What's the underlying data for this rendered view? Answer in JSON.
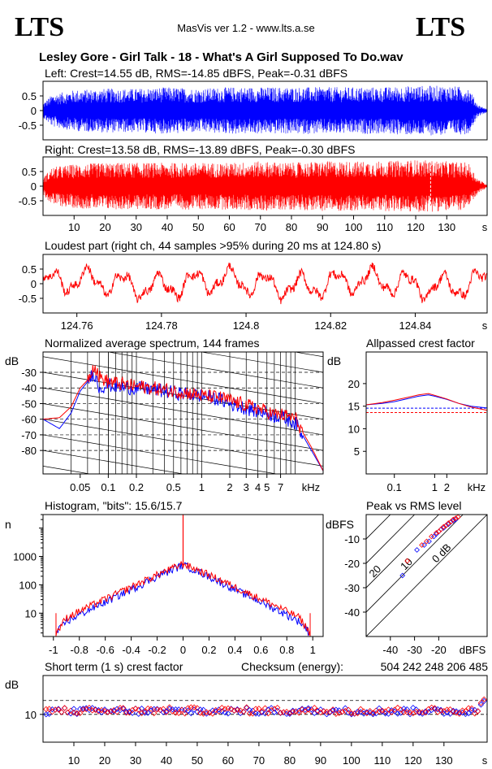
{
  "header": {
    "logo_left": "LTS",
    "logo_right": "LTS",
    "app_title": "MasVis ver 1.2 - www.lts.a.se",
    "file_title": "Lesley Gore - Girl Talk - 18 - What's A Girl Supposed To Do.wav"
  },
  "colors": {
    "left": "#0000ff",
    "right": "#ff0000",
    "frame": "#000000",
    "background": "#ffffff"
  },
  "chart_data": [
    {
      "id": "left-waveform",
      "type": "area",
      "title": "Left: Crest=14.55 dB, RMS=-14.85 dBFS, Peak=-0.31 dBFS",
      "crest_db": 14.55,
      "rms_dbfs": -14.85,
      "peak_dbfs": -0.31,
      "ylim": [
        -1,
        1
      ],
      "yticks": [
        "0.5",
        "0",
        "-0.5"
      ],
      "xlim": [
        0,
        143
      ],
      "envelope_x": [
        0,
        3,
        10,
        20,
        30,
        40,
        50,
        60,
        70,
        80,
        90,
        100,
        110,
        120,
        130,
        137,
        140,
        143
      ],
      "envelope_y": [
        0.25,
        0.55,
        0.7,
        0.75,
        0.75,
        0.8,
        0.75,
        0.8,
        0.8,
        0.8,
        0.8,
        0.8,
        0.8,
        0.85,
        0.85,
        0.8,
        0.2,
        0.05
      ],
      "series": "left"
    },
    {
      "id": "right-waveform",
      "type": "area",
      "title": "Right: Crest=13.58 dB, RMS=-13.89 dBFS, Peak=-0.30 dBFS",
      "crest_db": 13.58,
      "rms_dbfs": -13.89,
      "peak_dbfs": -0.3,
      "ylim": [
        -1,
        1
      ],
      "yticks": [
        "0.5",
        "0",
        "-0.5"
      ],
      "xlim": [
        0,
        143
      ],
      "xticks": [
        "10",
        "20",
        "30",
        "40",
        "50",
        "60",
        "70",
        "80",
        "90",
        "100",
        "110",
        "120",
        "130"
      ],
      "xtick_values": [
        10,
        20,
        30,
        40,
        50,
        60,
        70,
        80,
        90,
        100,
        110,
        120,
        130
      ],
      "xunit": "s",
      "marker_time": 124.8,
      "envelope_x": [
        0,
        3,
        10,
        20,
        30,
        40,
        50,
        60,
        70,
        80,
        90,
        100,
        110,
        120,
        130,
        137,
        140,
        143
      ],
      "envelope_y": [
        0.3,
        0.65,
        0.75,
        0.8,
        0.8,
        0.8,
        0.8,
        0.8,
        0.85,
        0.8,
        0.85,
        0.85,
        0.85,
        0.9,
        0.85,
        0.8,
        0.25,
        0.05
      ],
      "series": "right"
    },
    {
      "id": "loudest-part",
      "type": "line",
      "title": "Loudest part (right ch, 44 samples >95% during 20 ms at 124.80 s)",
      "ylim": [
        -1,
        1
      ],
      "yticks": [
        "0.5",
        "0",
        "-0.5"
      ],
      "xlim": [
        124.752,
        124.857
      ],
      "xticks": [
        "124.76",
        "124.78",
        "124.8",
        "124.82",
        "124.84"
      ],
      "xtick_values": [
        124.76,
        124.78,
        124.8,
        124.82,
        124.84
      ],
      "xunit": "s",
      "series": "right"
    },
    {
      "id": "average-spectrum",
      "type": "line",
      "title": "Normalized average spectrum, 144 frames",
      "ylabel": "dB",
      "xunit": "kHz",
      "log_x": true,
      "xlim": [
        0.02,
        20
      ],
      "ylim": [
        -95,
        -17
      ],
      "yticks": [
        "-30",
        "-40",
        "-50",
        "-60",
        "-70",
        "-80"
      ],
      "ytick_values": [
        -30,
        -40,
        -50,
        -60,
        -70,
        -80
      ],
      "xticks": [
        "0.05",
        "0.1",
        "0.2",
        "0.5",
        "1",
        "2",
        "3",
        "4",
        "5",
        "7"
      ],
      "xtick_values": [
        0.05,
        0.1,
        0.2,
        0.5,
        1,
        2,
        3,
        4,
        5,
        7
      ],
      "series_data": [
        {
          "color": "left",
          "x": [
            0.02,
            0.03,
            0.04,
            0.05,
            0.06,
            0.07,
            0.08,
            0.1,
            0.15,
            0.2,
            0.3,
            0.5,
            0.7,
            1,
            1.5,
            2,
            3,
            4,
            5,
            6,
            7,
            8,
            10,
            12,
            15,
            20
          ],
          "y": [
            -60,
            -66,
            -56,
            -42,
            -36,
            -30,
            -40,
            -38,
            -40,
            -40,
            -41,
            -43,
            -44,
            -45,
            -47,
            -50,
            -53,
            -55,
            -56,
            -58,
            -58,
            -60,
            -62,
            -70,
            -80,
            -93
          ]
        },
        {
          "color": "right",
          "x": [
            0.02,
            0.03,
            0.04,
            0.05,
            0.06,
            0.07,
            0.08,
            0.1,
            0.15,
            0.2,
            0.3,
            0.5,
            0.7,
            1,
            1.5,
            2,
            3,
            4,
            5,
            6,
            7,
            8,
            10,
            12,
            15,
            20
          ],
          "y": [
            -60,
            -59,
            -52,
            -40,
            -35,
            -25,
            -33,
            -36,
            -38,
            -39,
            -40,
            -42,
            -43,
            -45,
            -46,
            -48,
            -51,
            -53,
            -55,
            -57,
            -57,
            -58,
            -59,
            -68,
            -78,
            -93
          ]
        }
      ]
    },
    {
      "id": "allpassed-crest",
      "type": "line",
      "title": "Allpassed crest factor",
      "ylabel": "dB",
      "xunit": "kHz",
      "log_x": true,
      "xlim": [
        0.02,
        20
      ],
      "ylim": [
        0,
        27
      ],
      "yticks": [
        "20",
        "15",
        "10",
        "5"
      ],
      "ytick_values": [
        20,
        15,
        10,
        5
      ],
      "xticks": [
        "0.1",
        "1",
        "2"
      ],
      "xtick_values": [
        0.1,
        1,
        2
      ],
      "reference_lines": [
        {
          "color": "left",
          "y": 14.55
        },
        {
          "color": "right",
          "y": 13.58
        }
      ],
      "series_data": [
        {
          "color": "left",
          "x": [
            0.02,
            0.05,
            0.1,
            0.2,
            0.4,
            0.7,
            1,
            2,
            4,
            8,
            20
          ],
          "y": [
            15.3,
            15.6,
            16.0,
            16.6,
            17.2,
            17.5,
            17.2,
            16.5,
            15.6,
            15.0,
            14.6
          ]
        },
        {
          "color": "right",
          "x": [
            0.02,
            0.05,
            0.1,
            0.2,
            0.4,
            0.7,
            1,
            2,
            4,
            8,
            20
          ],
          "y": [
            15.3,
            15.8,
            16.3,
            16.9,
            17.5,
            17.8,
            17.4,
            16.6,
            15.6,
            14.8,
            14.1
          ]
        }
      ]
    },
    {
      "id": "histogram",
      "type": "line",
      "title": "Histogram, \"bits\": 15.6/15.7",
      "ylabel": "n",
      "log_y": true,
      "xlim": [
        -1.08,
        1.08
      ],
      "ylim": [
        1.5,
        30000
      ],
      "xticks": [
        "-1",
        "-0.8",
        "-0.6",
        "-0.4",
        "-0.2",
        "0",
        "0.2",
        "0.4",
        "0.6",
        "0.8",
        "1"
      ],
      "xtick_values": [
        -1,
        -0.8,
        -0.6,
        -0.4,
        -0.2,
        0,
        0.2,
        0.4,
        0.6,
        0.8,
        1
      ],
      "yticks": [
        "1000",
        "100",
        "10"
      ],
      "ytick_values": [
        1000,
        100,
        10
      ],
      "peak_count": 500,
      "series_data": [
        {
          "color": "left",
          "x": [
            -0.98,
            -0.9,
            -0.8,
            -0.6,
            -0.4,
            -0.2,
            0,
            0.2,
            0.4,
            0.6,
            0.8,
            0.9,
            0.98
          ],
          "y": [
            2,
            5,
            9,
            25,
            70,
            200,
            520,
            200,
            70,
            25,
            9,
            5,
            2
          ]
        },
        {
          "color": "right",
          "x": [
            -0.98,
            -0.9,
            -0.8,
            -0.6,
            -0.4,
            -0.2,
            0,
            0.2,
            0.4,
            0.6,
            0.8,
            0.9,
            0.98
          ],
          "y": [
            2,
            7,
            12,
            32,
            85,
            230,
            560,
            230,
            85,
            32,
            12,
            7,
            2
          ]
        }
      ]
    },
    {
      "id": "peak-vs-rms",
      "type": "scatter",
      "title": "Peak vs RMS level",
      "ylabel": "dBFS",
      "xunit": "dBFS",
      "xlim": [
        -50,
        0
      ],
      "ylim": [
        -50,
        0
      ],
      "yticks": [
        "-10",
        "-20",
        "-30",
        "-40"
      ],
      "ytick_values": [
        -10,
        -20,
        -30,
        -40
      ],
      "xticks": [
        "-40",
        "-30",
        "-20"
      ],
      "xtick_values": [
        -40,
        -30,
        -20
      ],
      "crest_lines": [
        "40",
        "30",
        "20",
        "10",
        "0 dB"
      ],
      "crest_values": [
        40,
        30,
        20,
        10,
        0
      ],
      "series_data": [
        {
          "color": "left",
          "x": [
            -35,
            -29,
            -26,
            -24,
            -22,
            -21,
            -20,
            -19,
            -18,
            -17,
            -16,
            -15,
            -14,
            -13
          ],
          "y": [
            -25,
            -14.5,
            -12.5,
            -11,
            -9,
            -8,
            -7,
            -6,
            -5.5,
            -4.5,
            -4,
            -3,
            -2.5,
            -2
          ]
        },
        {
          "color": "right",
          "x": [
            -33,
            -27,
            -25,
            -23,
            -21,
            -20,
            -19,
            -18,
            -17,
            -16,
            -15,
            -14,
            -13,
            -12
          ],
          "y": [
            -19,
            -12.5,
            -11,
            -9,
            -7.5,
            -7,
            -6,
            -5,
            -4.5,
            -3.5,
            -3,
            -2,
            -1.5,
            -1
          ]
        }
      ]
    },
    {
      "id": "short-term-crest",
      "type": "scatter",
      "title": "Short term (1 s) crest factor",
      "checksum_label": "Checksum (energy):",
      "checksum_value": "504 242 248 206 485",
      "ylabel": "dB",
      "xunit": "s",
      "xlim": [
        0,
        144
      ],
      "ylim": [
        0,
        24
      ],
      "yticks": [
        "10"
      ],
      "ytick_values": [
        10
      ],
      "dashed_lines": [
        10,
        15
      ],
      "xticks": [
        "10",
        "20",
        "30",
        "40",
        "50",
        "60",
        "70",
        "80",
        "90",
        "100",
        "110",
        "120",
        "130"
      ],
      "xtick_values": [
        10,
        20,
        30,
        40,
        50,
        60,
        70,
        80,
        90,
        100,
        110,
        120,
        130
      ],
      "mean_left_db": 11.2,
      "mean_right_db": 11.4,
      "end_values_db": [
        13.5,
        14.8
      ]
    }
  ]
}
